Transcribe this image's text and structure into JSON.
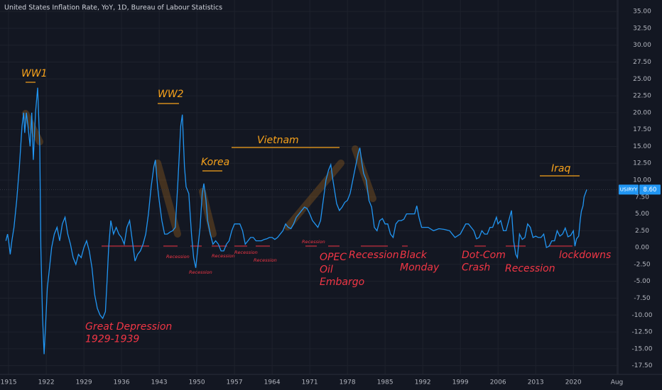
{
  "chart_data": {
    "type": "line",
    "title": "United States Inflation Rate, YoY, 1D, Bureau of Labour Statistics",
    "series": [
      {
        "name": "USIRYY",
        "color": "#2196f3",
        "x": [
          1914.5,
          1914.8,
          1915,
          1915.3,
          1915.6,
          1916,
          1916.5,
          1917,
          1917.5,
          1917.8,
          1918,
          1918.3,
          1918.6,
          1919,
          1919.3,
          1919.6,
          1920,
          1920.4,
          1920.8,
          1921,
          1921.3,
          1921.6,
          1921.9,
          1922.2,
          1922.6,
          1923,
          1923.5,
          1924,
          1924.5,
          1925,
          1925.5,
          1926,
          1926.5,
          1927,
          1927.5,
          1928,
          1928.5,
          1929,
          1929.5,
          1930,
          1930.5,
          1931,
          1931.5,
          1932,
          1932.5,
          1933,
          1933.3,
          1933.6,
          1934,
          1934.5,
          1935,
          1935.5,
          1936,
          1936.5,
          1937,
          1937.5,
          1938,
          1938.5,
          1939,
          1939.5,
          1940,
          1940.5,
          1941,
          1941.5,
          1942,
          1942.3,
          1942.7,
          1943,
          1943.5,
          1944,
          1944.5,
          1945,
          1945.5,
          1946,
          1946.5,
          1947,
          1947.3,
          1947.7,
          1948,
          1948.5,
          1949,
          1949.4,
          1949.8,
          1950.2,
          1950.6,
          1951,
          1951.3,
          1951.7,
          1952,
          1952.5,
          1953,
          1953.5,
          1954,
          1954.5,
          1955,
          1955.5,
          1956,
          1956.5,
          1957,
          1957.5,
          1958,
          1958.5,
          1959,
          1959.5,
          1960,
          1960.5,
          1961,
          1961.5,
          1962,
          1962.5,
          1963,
          1963.5,
          1964,
          1964.5,
          1965,
          1965.5,
          1966,
          1966.5,
          1967,
          1967.5,
          1968,
          1968.5,
          1969,
          1969.5,
          1970,
          1970.5,
          1971,
          1971.5,
          1972,
          1972.5,
          1973,
          1973.5,
          1974,
          1974.5,
          1974.9,
          1975.3,
          1975.7,
          1976,
          1976.5,
          1977,
          1977.5,
          1978,
          1978.5,
          1979,
          1979.5,
          1980,
          1980.3,
          1980.7,
          1981,
          1981.5,
          1982,
          1982.5,
          1983,
          1983.5,
          1984,
          1984.5,
          1985,
          1985.5,
          1986,
          1986.5,
          1987,
          1987.5,
          1988,
          1988.5,
          1989,
          1989.5,
          1990,
          1990.5,
          1990.9,
          1991.3,
          1991.8,
          1992,
          1993,
          1994,
          1995,
          1996,
          1997,
          1998,
          1999,
          2000,
          2000.5,
          2001,
          2001.5,
          2002,
          2002.5,
          2003,
          2003.5,
          2004,
          2004.5,
          2005,
          2005.7,
          2006,
          2006.5,
          2007,
          2007.5,
          2008,
          2008.5,
          2008.9,
          2009.3,
          2009.6,
          2010,
          2010.5,
          2011,
          2011.5,
          2012,
          2012.5,
          2013,
          2013.5,
          2014,
          2014.5,
          2015,
          2015.5,
          2016,
          2016.5,
          2017,
          2017.5,
          2018,
          2018.5,
          2019,
          2019.5,
          2020,
          2020.3,
          2020.6,
          2021,
          2021.3,
          2021.5,
          2021.8,
          2022,
          2022.5
        ],
        "values": [
          1,
          2,
          1,
          -1,
          1,
          3,
          7,
          12,
          18,
          20,
          17,
          20,
          18,
          15,
          20,
          13,
          20,
          23.7,
          15,
          0,
          -10,
          -15.8,
          -11,
          -6,
          -3,
          0,
          2,
          3,
          1,
          3.5,
          4.5,
          2,
          0.5,
          -1.5,
          -2.5,
          -1,
          -1.5,
          0,
          1,
          -0.5,
          -3,
          -7,
          -9,
          -10,
          -10.5,
          -9.5,
          -5,
          0,
          4,
          2,
          3,
          2,
          1.5,
          0.5,
          3,
          4,
          1,
          -2,
          -1,
          -0.5,
          0.5,
          2,
          5,
          9,
          12,
          13,
          9,
          7,
          4,
          2,
          2,
          2.3,
          2.5,
          3,
          10,
          18,
          19.7,
          12,
          9,
          8,
          2,
          -1.5,
          -3,
          0,
          3,
          8,
          9.5,
          7,
          4,
          2,
          0.5,
          1,
          0.5,
          -0.5,
          -0.5,
          0.5,
          1,
          2.5,
          3.5,
          3.5,
          3.5,
          2.5,
          0.5,
          1,
          1.5,
          1.5,
          1,
          1,
          1,
          1.2,
          1.3,
          1.5,
          1.5,
          1.2,
          1.5,
          2,
          2.5,
          3.5,
          3,
          2.8,
          3.5,
          4.5,
          5,
          5.5,
          6,
          5.8,
          5,
          4,
          3.5,
          3,
          4,
          7,
          10,
          11.5,
          12.3,
          10,
          8,
          6.5,
          5.5,
          6,
          6.7,
          7,
          8,
          10,
          12,
          14,
          14.8,
          12.5,
          11,
          10,
          7,
          6,
          3,
          2.5,
          4,
          4.3,
          3.5,
          3.5,
          2,
          1.5,
          3.5,
          4,
          4,
          4.2,
          5,
          5,
          5,
          5,
          6.2,
          4.5,
          3,
          3,
          3,
          2.5,
          2.8,
          2.7,
          2.5,
          1.5,
          2,
          3.5,
          3.5,
          3,
          2.5,
          1.3,
          1.5,
          2.5,
          2,
          2,
          3,
          3,
          4.5,
          3.5,
          4,
          2.5,
          2.5,
          4,
          5.5,
          1,
          -1,
          -1.5,
          2,
          1.2,
          1.5,
          3.5,
          3,
          1.5,
          1.7,
          1.5,
          1.5,
          2,
          0,
          0.2,
          1,
          1,
          2.5,
          1.7,
          2,
          2.9,
          1.6,
          1.8,
          2.5,
          0.2,
          1.3,
          1.7,
          4.2,
          5.4,
          6.2,
          7.5,
          8.6
        ]
      }
    ],
    "last_label": "8.60",
    "xlim": [
      1913.4,
      2028.3
    ],
    "xticks": [
      1915,
      1922,
      1929,
      1936,
      1943,
      1950,
      1957,
      1964,
      1971,
      1978,
      1985,
      1992,
      1999,
      2006,
      2013,
      2020,
      {
        "value": 2028.1,
        "label": "Aug"
      }
    ],
    "ylim": [
      -18.8,
      36.7
    ],
    "yticks": [
      {
        "value": 35,
        "label": "35.00"
      },
      {
        "value": 32.5,
        "label": "32.50"
      },
      {
        "value": 30,
        "label": "30.00"
      },
      {
        "value": 27.5,
        "label": "27.50"
      },
      {
        "value": 25,
        "label": "25.00"
      },
      {
        "value": 22.5,
        "label": "22.50"
      },
      {
        "value": 20,
        "label": "20.00"
      },
      {
        "value": 17.5,
        "label": "17.50"
      },
      {
        "value": 15,
        "label": "15.00"
      },
      {
        "value": 12.5,
        "label": "12.50"
      },
      {
        "value": 10,
        "label": "10.00"
      },
      {
        "value": 7.5,
        "label": "7.50"
      },
      {
        "value": 5,
        "label": "5.00"
      },
      {
        "value": 2.5,
        "label": "2.50"
      },
      {
        "value": 0,
        "label": "0.00"
      },
      {
        "value": -2.5,
        "label": "-2.50"
      },
      {
        "value": -5,
        "label": "-5.00"
      },
      {
        "value": -7.5,
        "label": "-7.50"
      },
      {
        "value": -10,
        "label": "-10.00"
      },
      {
        "value": -12.5,
        "label": "-12.50"
      },
      {
        "value": -15,
        "label": "-15.00"
      },
      {
        "value": -17.5,
        "label": "-17.50"
      }
    ],
    "grid": true,
    "annotations": [
      [
        "WW1"
      ],
      [
        "WW2"
      ],
      [
        "Korea"
      ],
      [
        "Vietnam"
      ],
      [
        "Iraq"
      ],
      [
        "Great Depression",
        "1929-1939"
      ],
      [
        "Recession"
      ],
      [
        "Recession"
      ],
      [
        "Recession"
      ],
      [
        "Recession"
      ],
      [
        "Recession"
      ],
      [
        "Recession"
      ],
      [
        "OPEC",
        "Oil",
        "Embargo"
      ],
      [
        "Recession"
      ],
      [
        "Black",
        "Monday"
      ],
      [
        "Dot-Com",
        "Crash"
      ],
      [
        "Recession"
      ],
      [
        "lockdowns"
      ]
    ]
  }
}
